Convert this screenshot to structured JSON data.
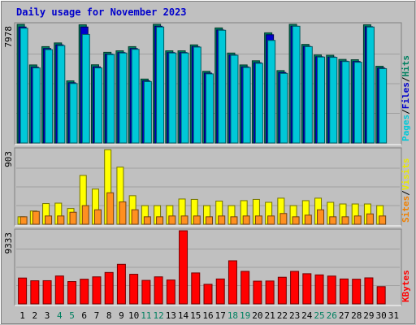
{
  "chart_data": {
    "type": "bar",
    "title": "Daily usage for November 2023",
    "categories": [
      "1",
      "2",
      "3",
      "4",
      "5",
      "6",
      "7",
      "8",
      "9",
      "10",
      "11",
      "12",
      "13",
      "14",
      "15",
      "16",
      "17",
      "18",
      "19",
      "20",
      "21",
      "22",
      "23",
      "24",
      "25",
      "26",
      "27",
      "28",
      "29",
      "30",
      "31"
    ],
    "weekend_days": [
      "4",
      "5",
      "11",
      "12",
      "18",
      "19",
      "25",
      "26"
    ],
    "panels": [
      {
        "id": "top",
        "max_label": "7978",
        "ymax": 7978,
        "legend": [
          {
            "text": "Pages",
            "color": "#00c8d8"
          },
          {
            "text": "/",
            "color": "#000000"
          },
          {
            "text": "Files",
            "color": "#0000cc"
          },
          {
            "text": "/",
            "color": "#000000"
          },
          {
            "text": "Hits",
            "color": "#008060"
          }
        ],
        "series": [
          {
            "name": "Hits",
            "color": "#008060",
            "values": [
              7980,
              5250,
              6480,
              6730,
              4180,
              7950,
              5260,
              6100,
              6200,
              6480,
              4300,
              7980,
              6200,
              6200,
              6600,
              4820,
              7740,
              6050,
              5250,
              5530,
              7410,
              4870,
              7980,
              6630,
              5920,
              5900,
              5620,
              5600,
              7950,
              5160,
              0
            ]
          },
          {
            "name": "Files",
            "color": "#0000cc",
            "values": [
              7800,
              5100,
              6350,
              6600,
              4050,
              7800,
              5120,
              5980,
              6080,
              6350,
              4180,
              7850,
              6080,
              6080,
              6480,
              4700,
              7600,
              5920,
              5120,
              5400,
              7280,
              4740,
              7850,
              6500,
              5800,
              5780,
              5500,
              5480,
              7820,
              5040,
              0
            ]
          },
          {
            "name": "Pages",
            "color": "#00c8d8",
            "values": [
              7720,
              5050,
              6280,
              6550,
              4000,
              7300,
              5050,
              5950,
              6050,
              6300,
              4130,
              7800,
              6050,
              6050,
              6450,
              4650,
              7580,
              5900,
              5080,
              5360,
              6900,
              4680,
              7850,
              6480,
              5780,
              5760,
              5480,
              5430,
              7800,
              5000,
              0
            ]
          }
        ]
      },
      {
        "id": "middle",
        "max_label": "903",
        "ymax": 903,
        "legend": [
          {
            "text": "Sites",
            "color": "#f08000"
          },
          {
            "text": "/",
            "color": "#000000"
          },
          {
            "text": "Visits",
            "color": "#e8e800"
          }
        ],
        "series": [
          {
            "name": "Visits",
            "color": "#ffff00",
            "values": [
              90,
              160,
              250,
              255,
              190,
              590,
              425,
              900,
              690,
              345,
              225,
              225,
              225,
              305,
              300,
              225,
              280,
              225,
              285,
              300,
              265,
              315,
              225,
              285,
              315,
              265,
              245,
              245,
              245,
              225,
              0
            ]
          },
          {
            "name": "Sites",
            "color": "#ff9020",
            "values": [
              90,
              155,
              100,
              100,
              145,
              225,
              175,
              380,
              270,
              175,
              90,
              90,
              100,
              100,
              100,
              90,
              100,
              90,
              100,
              100,
              100,
              130,
              90,
              110,
              175,
              90,
              90,
              100,
              125,
              100,
              0
            ]
          }
        ]
      },
      {
        "id": "bottom",
        "max_label": "9333",
        "ymax": 9333,
        "legend": [
          {
            "text": "KBytes",
            "color": "#ff0000"
          }
        ],
        "series": [
          {
            "name": "KBytes",
            "color": "#ff0000",
            "values": [
              3300,
              2950,
              2960,
              3560,
              2850,
              3150,
              3450,
              4010,
              5050,
              3780,
              3000,
              3450,
              3050,
              9333,
              3950,
              2500,
              3180,
              5500,
              4150,
              2900,
              2920,
              3400,
              4150,
              3850,
              3700,
              3550,
              3180,
              3150,
              3320,
              2200,
              0
            ]
          }
        ]
      }
    ]
  }
}
